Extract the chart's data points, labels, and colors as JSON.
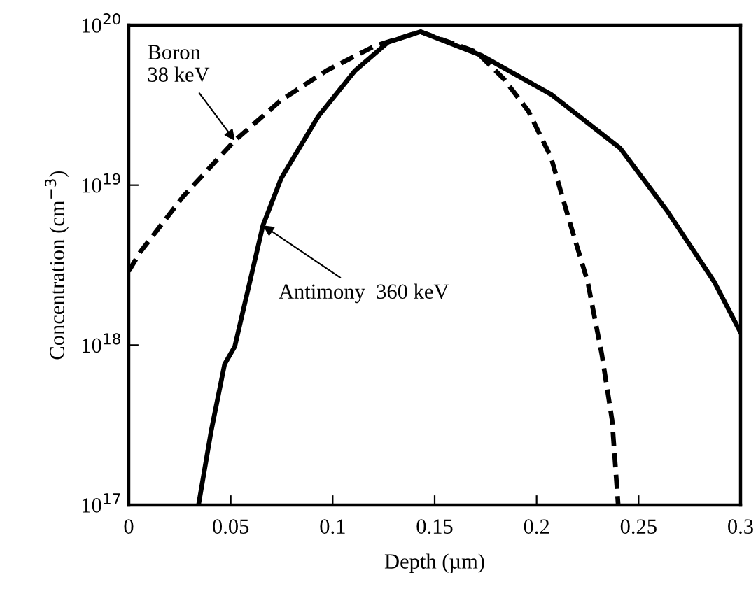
{
  "chart_data": {
    "type": "line",
    "xlabel": "Depth (µm)",
    "ylabel": "Concentration (cm$^{−3}$)",
    "log": "y",
    "grid": false,
    "legend": false,
    "xlim": [
      0,
      0.3
    ],
    "xticks": [
      0,
      0.05,
      0.1,
      0.15,
      0.2,
      0.25,
      0.3
    ],
    "ylim": [
      1e+17,
      1e+20
    ],
    "yticks": [
      {
        "value": 1e+17,
        "label": "10$^{17}$"
      },
      {
        "value": 1e+18,
        "label": "10$^{18}$"
      },
      {
        "value": 1e+19,
        "label": "10$^{19}$"
      },
      {
        "value": 1e+20,
        "label": "10$^{20}$"
      }
    ],
    "series": [
      {
        "color": "#000000",
        "line_style": "dashed",
        "x": [
          0,
          0.0055,
          0.0267,
          0.052,
          0.0747,
          0.097,
          0.1205,
          0.143,
          0.1705,
          0.184,
          0.196,
          0.207,
          0.216,
          0.225,
          0.232,
          0.237,
          0.24
        ],
        "values": [
          2.9e+18,
          3.8e+18,
          8.5e+18,
          1.9e+19,
          3.4e+19,
          5.2e+19,
          7.4e+19,
          9.1e+19,
          6.8e+19,
          4.6e+19,
          2.9e+19,
          1.5e+19,
          6e+18,
          2.5e+18,
          8.7e+17,
          3.4e+17,
          1e+17
        ]
      },
      {
        "color": "#000000",
        "line_style": "solid",
        "x": [
          0.0342,
          0.0404,
          0.047,
          0.052,
          0.0658,
          0.0747,
          0.093,
          0.111,
          0.127,
          0.143,
          0.1726,
          0.207,
          0.241,
          0.264,
          0.287,
          0.3
        ],
        "values": [
          1e+17,
          2.9e+17,
          7.6e+17,
          9.8e+17,
          5.6e+18,
          1.1e+19,
          2.7e+19,
          5.2e+19,
          7.8e+19,
          9.1e+19,
          6.5e+19,
          3.7e+19,
          1.7e+19,
          6.9e+18,
          2.5e+18,
          1.2e+18
        ]
      }
    ],
    "annotations": [
      {
        "text": "Boron\n38 keV",
        "x": 0.052,
        "y": 1.9e+19
      },
      {
        "text": "Antimony  360 keV",
        "x": 0.0658,
        "y": 5.6e+18
      }
    ]
  }
}
